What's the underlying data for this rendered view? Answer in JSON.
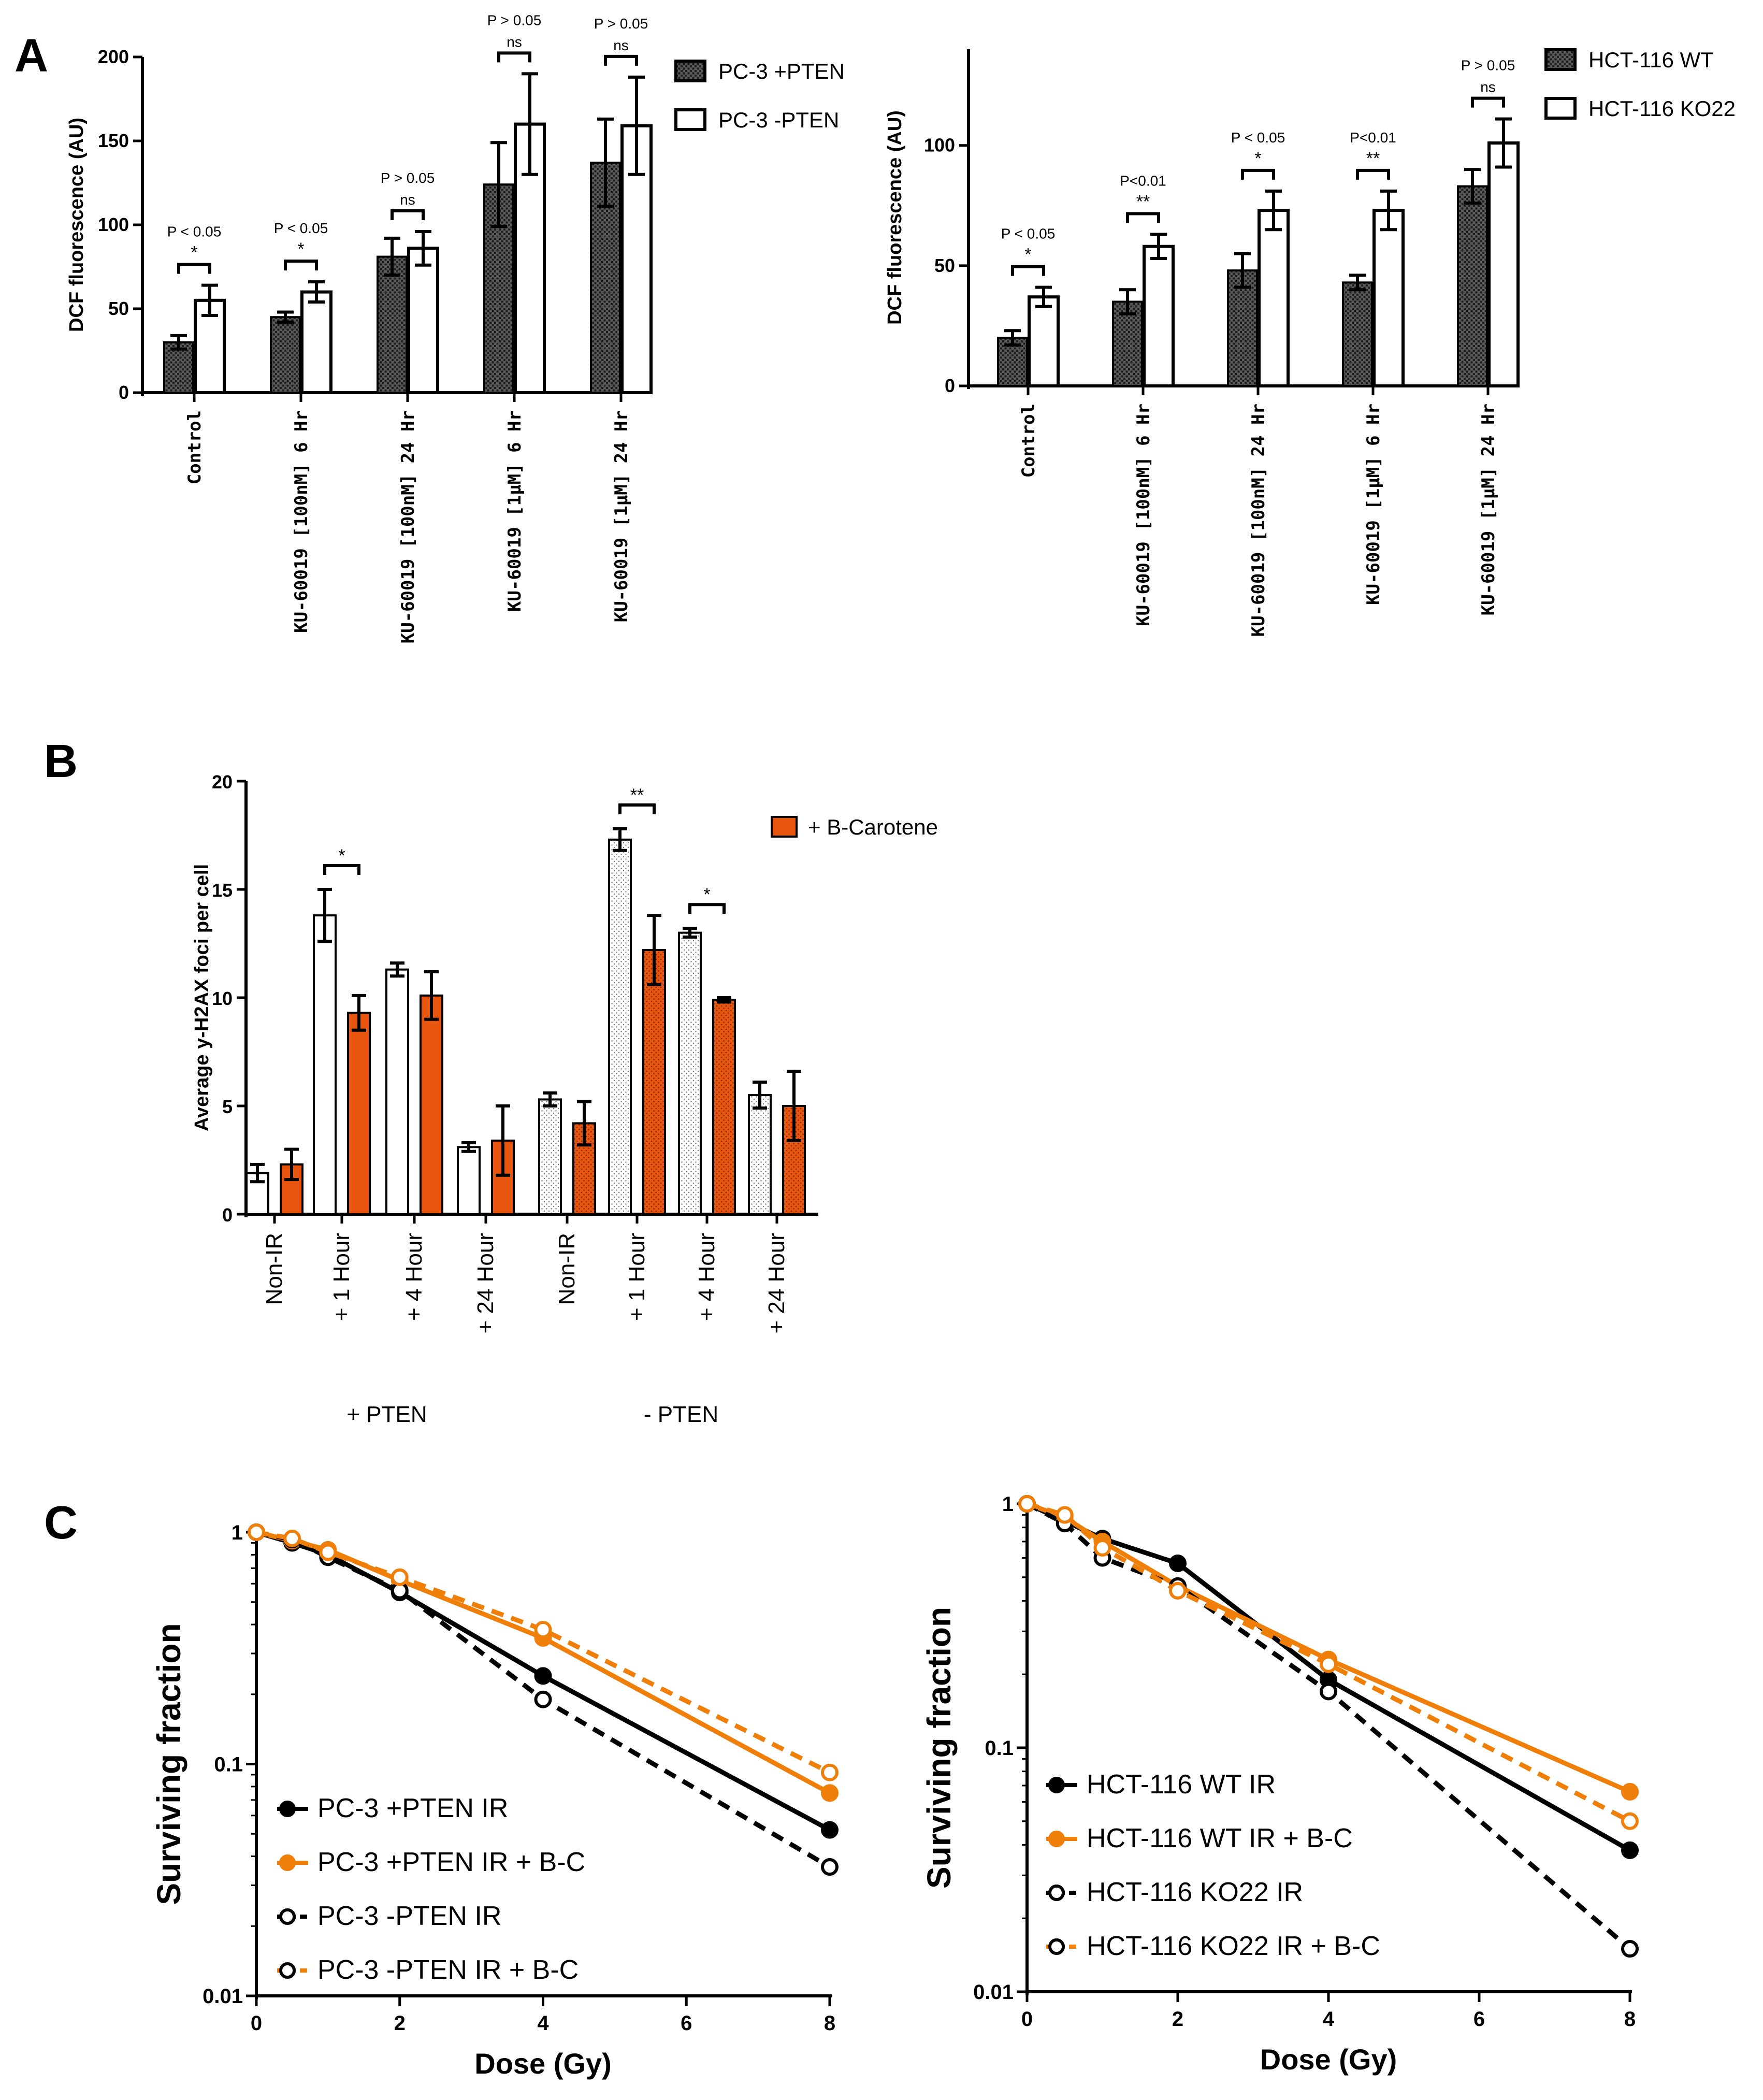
{
  "colors": {
    "black": "#000000",
    "orange": "#f07f09",
    "orange_bar": "#e8550e",
    "hatch": "#3a3a3a"
  },
  "panels": {
    "A": "A",
    "B": "B",
    "C": "C"
  },
  "chart_data": [
    {
      "id": "A1",
      "type": "bar",
      "ylabel": "DCF fluorescence (AU)",
      "ylim": [
        0,
        200
      ],
      "yticks": [
        0,
        50,
        100,
        150,
        200
      ],
      "categories": [
        "Control",
        "KU-60019 [100nM] 6 Hr",
        "KU-60019 [100nM] 24 Hr",
        "KU-60019 [1µM] 6 Hr",
        "KU-60019 [1µM] 24 Hr"
      ],
      "series": [
        {
          "name": "PC-3 +PTEN",
          "pattern": "hatch",
          "values": [
            30,
            45,
            81,
            124,
            137
          ],
          "errors": [
            4,
            3,
            11,
            25,
            26
          ]
        },
        {
          "name": "PC-3 -PTEN",
          "pattern": "open",
          "values": [
            55,
            60,
            86,
            160,
            159
          ],
          "errors": [
            9,
            6,
            10,
            30,
            29
          ]
        }
      ],
      "annotations": [
        {
          "p": "P < 0.05",
          "sig": "*"
        },
        {
          "p": "P < 0.05",
          "sig": "*"
        },
        {
          "p": "P > 0.05",
          "sig": "ns"
        },
        {
          "p": "P > 0.05",
          "sig": "ns"
        },
        {
          "p": "P > 0.05",
          "sig": "ns"
        }
      ]
    },
    {
      "id": "A2",
      "type": "bar",
      "ylabel": "DCF fluorescence (AU)",
      "ylim": [
        0,
        140
      ],
      "yticks": [
        0,
        50,
        100
      ],
      "categories": [
        "Control",
        "KU-60019 [100nM] 6 Hr",
        "KU-60019 [100nM] 24 Hr",
        "KU-60019 [1µM] 6 Hr",
        "KU-60019 [1µM] 24 Hr"
      ],
      "series": [
        {
          "name": "HCT-116 WT",
          "pattern": "hatch",
          "values": [
            20,
            35,
            48,
            43,
            83
          ],
          "errors": [
            3,
            5,
            7,
            3,
            7
          ]
        },
        {
          "name": "HCT-116 KO22",
          "pattern": "open",
          "values": [
            37,
            58,
            73,
            73,
            101
          ],
          "errors": [
            4,
            5,
            8,
            8,
            10
          ]
        }
      ],
      "annotations": [
        {
          "p": "P < 0.05",
          "sig": "*"
        },
        {
          "p": "P<0.01",
          "sig": "**"
        },
        {
          "p": "P < 0.05",
          "sig": "*"
        },
        {
          "p": "P<0.01",
          "sig": "**"
        },
        {
          "p": "P > 0.05",
          "sig": "ns"
        }
      ]
    },
    {
      "id": "B",
      "type": "bar",
      "ylabel": "Average y-H2AX foci per cell",
      "ylim": [
        0,
        20
      ],
      "yticks": [
        0,
        5,
        10,
        15,
        20
      ],
      "groups": [
        "+ PTEN",
        "- PTEN"
      ],
      "categories": [
        "Non-IR",
        "+ 1 Hour",
        "+ 4 Hour",
        "+ 24 Hour"
      ],
      "legend": "+ B-Carotene",
      "series": [
        {
          "name": "+ PTEN",
          "values": [
            1.9,
            13.8,
            11.3,
            3.1
          ],
          "errors": [
            0.4,
            1.2,
            0.3,
            0.2
          ]
        },
        {
          "name": "+ PTEN + B-Carotene",
          "values": [
            2.3,
            9.3,
            10.1,
            3.4
          ],
          "errors": [
            0.7,
            0.8,
            1.1,
            1.6
          ]
        },
        {
          "name": "- PTEN",
          "values": [
            5.3,
            17.3,
            13.0,
            5.5
          ],
          "errors": [
            0.3,
            0.5,
            0.2,
            0.6
          ]
        },
        {
          "name": "- PTEN + B-Carotene",
          "values": [
            4.2,
            12.2,
            9.9,
            5.0
          ],
          "errors": [
            1.0,
            1.6,
            0.1,
            1.6
          ]
        }
      ],
      "annotations": [
        "*",
        "**",
        "*"
      ]
    },
    {
      "id": "C1",
      "type": "line",
      "yscale": "log",
      "xlabel": "Dose (Gy)",
      "ylabel": "Surviving fraction",
      "xlim": [
        0,
        8
      ],
      "ylim": [
        0.01,
        1
      ],
      "xticks": [
        0,
        2,
        4,
        6,
        8
      ],
      "yticks": [
        0.01,
        0.1,
        1
      ],
      "ytick_labels": [
        "0.01",
        "0.1",
        "1"
      ],
      "x": [
        0,
        0.5,
        1,
        2,
        4,
        8
      ],
      "series": [
        {
          "name": "PC-3 +PTEN IR",
          "values": [
            1,
            0.9,
            0.8,
            0.55,
            0.24,
            0.052
          ]
        },
        {
          "name": "PC-3 +PTEN IR + B-C",
          "values": [
            1,
            0.92,
            0.84,
            0.62,
            0.35,
            0.075
          ]
        },
        {
          "name": "PC-3 -PTEN IR",
          "values": [
            1,
            0.93,
            0.78,
            0.56,
            0.19,
            0.036
          ]
        },
        {
          "name": "PC-3 -PTEN IR + B-C",
          "values": [
            1,
            0.94,
            0.82,
            0.64,
            0.38,
            0.092
          ]
        }
      ]
    },
    {
      "id": "C2",
      "type": "line",
      "yscale": "log",
      "xlabel": "Dose (Gy)",
      "ylabel": "Surviving fraction",
      "xlim": [
        0,
        8
      ],
      "ylim": [
        0.01,
        1
      ],
      "xticks": [
        0,
        2,
        4,
        6,
        8
      ],
      "yticks": [
        0.01,
        0.1,
        1
      ],
      "ytick_labels": [
        "0.01",
        "0.1",
        "1"
      ],
      "x": [
        0,
        0.5,
        1,
        2,
        4,
        8
      ],
      "series": [
        {
          "name": "HCT-116 WT IR",
          "values": [
            1,
            0.85,
            0.72,
            0.57,
            0.19,
            0.038
          ]
        },
        {
          "name": "HCT-116 WT IR + B-C",
          "values": [
            1,
            0.88,
            0.7,
            0.46,
            0.23,
            0.066
          ]
        },
        {
          "name": "HCT-116 KO22 IR",
          "values": [
            1,
            0.83,
            0.6,
            0.46,
            0.17,
            0.015
          ]
        },
        {
          "name": "HCT-116 KO22 IR + B-C",
          "values": [
            1,
            0.9,
            0.66,
            0.44,
            0.22,
            0.05
          ]
        }
      ]
    }
  ]
}
